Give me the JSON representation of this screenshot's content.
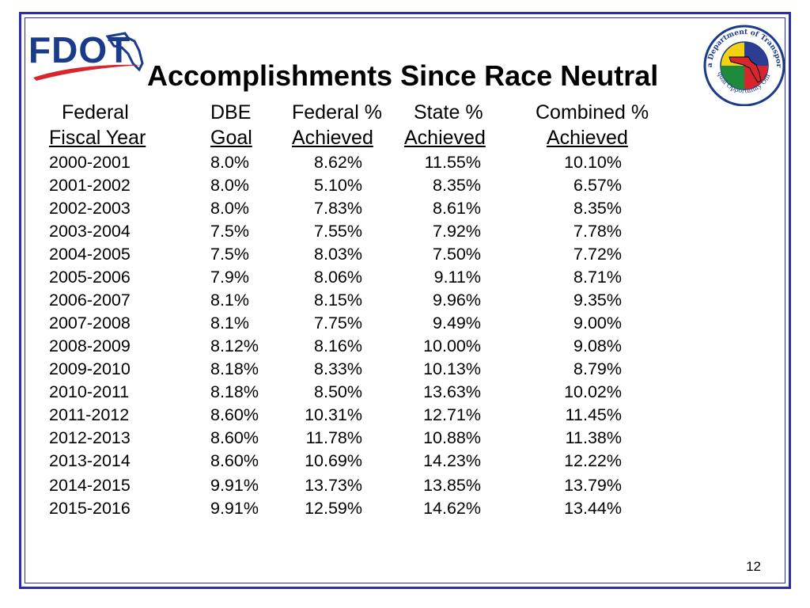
{
  "slide": {
    "logo_text": "FDOT",
    "title": "Accomplishments Since Race Neutral",
    "page_number": "12",
    "seal": {
      "top_text": "Florida Department of Transportation",
      "bottom_text": "Equal Opportunity Office"
    }
  },
  "table": {
    "headers": [
      {
        "line1": "Federal",
        "line2": "Fiscal Year"
      },
      {
        "line1": "DBE",
        "line2": "Goal"
      },
      {
        "line1": "Federal %",
        "line2": "Achieved"
      },
      {
        "line1": "State %",
        "line2": "Achieved"
      },
      {
        "line1": "Combined %",
        "line2": "Achieved"
      }
    ],
    "rows": [
      {
        "year": "2000-2001",
        "goal": "8.0%",
        "federal": "8.62%",
        "state": "11.55%",
        "combined": "10.10%"
      },
      {
        "year": "2001-2002",
        "goal": "8.0%",
        "federal": "5.10%",
        "state": "8.35%",
        "combined": "6.57%"
      },
      {
        "year": "2002-2003",
        "goal": "8.0%",
        "federal": "7.83%",
        "state": "8.61%",
        "combined": "8.35%"
      },
      {
        "year": "2003-2004",
        "goal": "7.5%",
        "federal": "7.55%",
        "state": "7.92%",
        "combined": "7.78%"
      },
      {
        "year": "2004-2005",
        "goal": "7.5%",
        "federal": "8.03%",
        "state": "7.50%",
        "combined": "7.72%"
      },
      {
        "year": "2005-2006",
        "goal": "7.9%",
        "federal": "8.06%",
        "state": "9.11%",
        "combined": "8.71%"
      },
      {
        "year": "2006-2007",
        "goal": "8.1%",
        "federal": "8.15%",
        "state": "9.96%",
        "combined": "9.35%"
      },
      {
        "year": "2007-2008",
        "goal": "8.1%",
        "federal": "7.75%",
        "state": "9.49%",
        "combined": "9.00%"
      },
      {
        "year": "2008-2009",
        "goal": "8.12%",
        "federal": "8.16%",
        "state": "10.00%",
        "combined": "9.08%"
      },
      {
        "year": "2009-2010",
        "goal": "8.18%",
        "federal": "8.33%",
        "state": "10.13%",
        "combined": "8.79%"
      },
      {
        "year": "2010-2011",
        "goal": "8.18%",
        "federal": "8.50%",
        "state": "13.63%",
        "combined": "10.02%"
      },
      {
        "year": "2011-2012",
        "goal": "8.60%",
        "federal": "10.31%",
        "state": "12.71%",
        "combined": "11.45%"
      },
      {
        "year": "2012-2013",
        "goal": "8.60%",
        "federal": "11.78%",
        "state": "10.88%",
        "combined": "11.38%"
      },
      {
        "year": "2013-2014",
        "goal": "8.60%",
        "federal": "10.69%",
        "state": "14.23%",
        "combined": "12.22%"
      },
      {
        "year": "2014-2015",
        "goal": "9.91%",
        "federal": "13.73%",
        "state": "13.85%",
        "combined": "13.79%"
      },
      {
        "year": "2015-2016",
        "goal": "9.91%",
        "federal": "12.59%",
        "state": "14.62%",
        "combined": "13.44%"
      }
    ]
  }
}
